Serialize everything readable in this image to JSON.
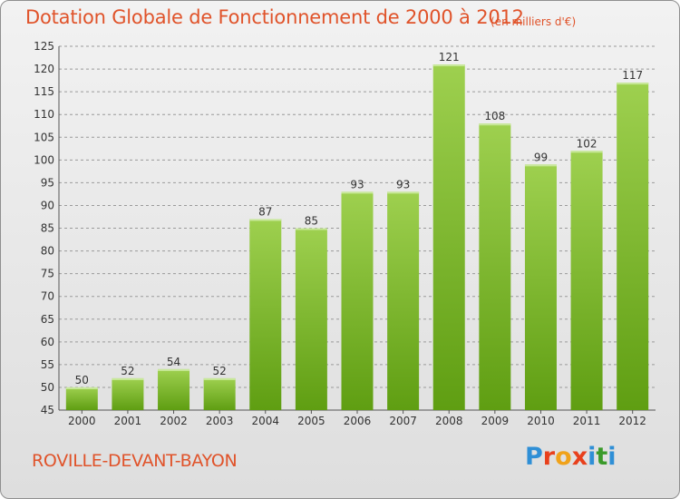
{
  "header": {
    "title": "Dotation Globale de Fonctionnement de 2000 à 2012",
    "unit": "(en milliers d'€)"
  },
  "footer": {
    "commune": "ROVILLE-DEVANT-BAYON",
    "logo_text": "Proxiti"
  },
  "colors": {
    "bar_light": "#9ed04f",
    "bar_dark": "#5f9e12",
    "title": "#e0532a",
    "grid": "#9a9a9a"
  },
  "chart_data": {
    "type": "bar",
    "title": "Dotation Globale de Fonctionnement de 2000 à 2012",
    "subtitle": "(en milliers d'€)",
    "categories": [
      "2000",
      "2001",
      "2002",
      "2003",
      "2004",
      "2005",
      "2006",
      "2007",
      "2008",
      "2009",
      "2010",
      "2011",
      "2012"
    ],
    "values": [
      50,
      52,
      54,
      52,
      87,
      85,
      93,
      93,
      121,
      108,
      99,
      102,
      117
    ],
    "ylim": [
      45,
      125
    ],
    "yticks": [
      45,
      50,
      55,
      60,
      65,
      70,
      75,
      80,
      85,
      90,
      95,
      100,
      105,
      110,
      115,
      120,
      125
    ],
    "grid": true,
    "data_labels": true,
    "legend": "none"
  }
}
